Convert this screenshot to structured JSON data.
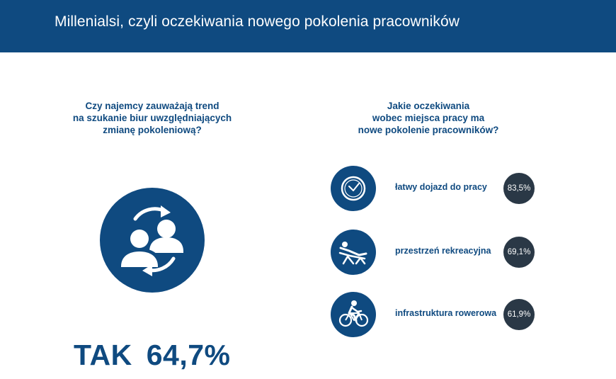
{
  "header": {
    "title": "Millenialsi, czyli oczekiwania nowego pokolenia pracowników",
    "color": "#0f4a80"
  },
  "left": {
    "question_lines": [
      "Czy najemcy zauważają trend",
      "na szukanie biur uwzględniających",
      "zmianę pokoleniową?"
    ],
    "icon": "people-exchange-icon",
    "answer": "TAK",
    "percent": "64,7%"
  },
  "right": {
    "question_lines": [
      "Jakie oczekiwania",
      "wobec miejsca pracy ma",
      "nowe pokolenie pracowników?"
    ],
    "items": [
      {
        "icon": "clock-icon",
        "label": "łatwy dojazd do pracy",
        "value": "83,5%"
      },
      {
        "icon": "lounge-chair-icon",
        "label": "przestrzeń rekreacyjna",
        "value": "69,1%"
      },
      {
        "icon": "bicycle-icon",
        "label": "infrastruktura rowerowa",
        "value": "61,9%"
      }
    ]
  },
  "colors": {
    "primary": "#0f4a80",
    "badge": "#2a3846",
    "background": "#ffffff"
  }
}
